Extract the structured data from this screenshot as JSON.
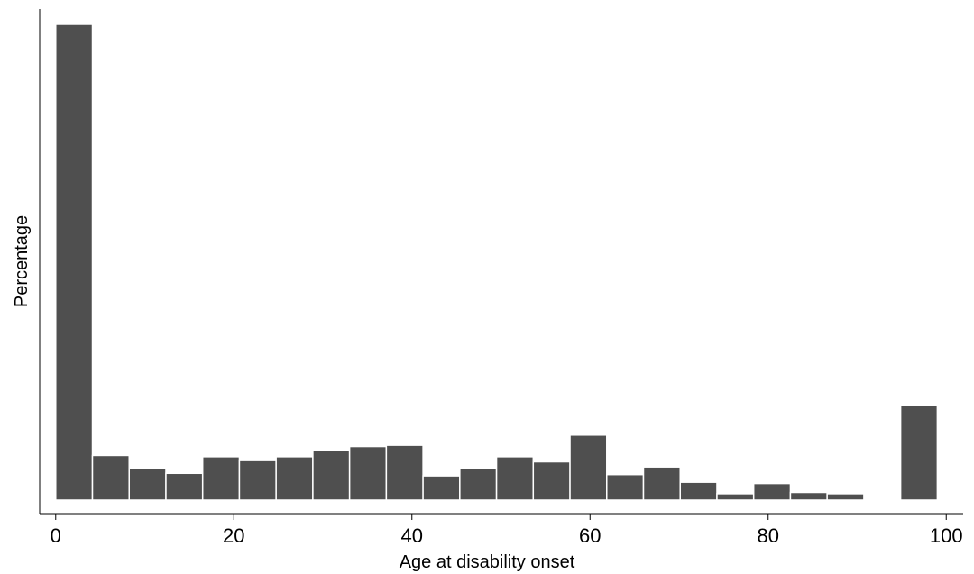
{
  "chart_data": {
    "type": "histogram",
    "x_label": "Age at disability onset",
    "y_label": "Percentage",
    "bins": [
      0,
      4.125,
      8.25,
      12.375,
      16.5,
      20.625,
      24.75,
      28.875,
      33,
      37.125,
      41.25,
      45.375,
      49.5,
      53.625,
      57.75,
      61.875,
      66,
      70.125,
      74.25,
      78.375,
      82.5,
      86.625,
      90.75,
      94.875,
      99
    ],
    "values": [
      37.3,
      3.5,
      2.5,
      2.1,
      3.4,
      3.1,
      3.4,
      3.9,
      4.2,
      4.3,
      1.9,
      2.5,
      3.4,
      3.0,
      5.1,
      2.0,
      2.6,
      1.4,
      0.5,
      1.3,
      0.6,
      0.5,
      0,
      7.4
    ],
    "color": "#4f4f4f",
    "xlim": [
      -1.8,
      101.9
    ],
    "ylim": [
      -1.06,
      38.5
    ],
    "xticks": [
      0,
      20,
      40,
      60,
      80,
      100
    ]
  }
}
